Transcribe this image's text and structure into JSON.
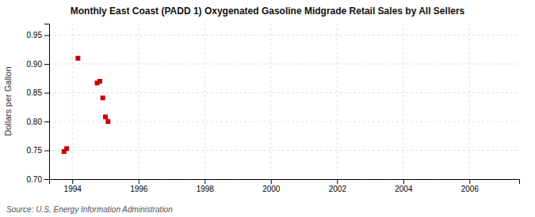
{
  "chart_data": {
    "type": "scatter",
    "title": "Monthly East Coast (PADD 1) Oxygenated Gasoline Midgrade Retail Sales by All Sellers",
    "ylabel": "Dollars per Gallon",
    "annotations": [
      "Source: U.S. Energy Information Administration"
    ],
    "x": [
      1993.75,
      1993.83,
      1994.17,
      1994.75,
      1994.83,
      1994.92,
      1995.0,
      1995.08
    ],
    "values": [
      0.748,
      0.753,
      0.91,
      0.867,
      0.87,
      0.841,
      0.808,
      0.8
    ],
    "color": "#cc0000",
    "marker": "square",
    "xlim": [
      1993.3,
      2007.5
    ],
    "ylim": [
      0.7,
      0.97
    ],
    "xticks": [
      1994,
      1996,
      1998,
      2000,
      2002,
      2004,
      2006
    ],
    "yticks": [
      {
        "value": 0.7,
        "label": "0.70"
      },
      0.75,
      {
        "value": 0.8,
        "label": "0.80"
      },
      0.85,
      {
        "value": 0.9,
        "label": "0.90"
      },
      0.95
    ],
    "grid": true
  }
}
